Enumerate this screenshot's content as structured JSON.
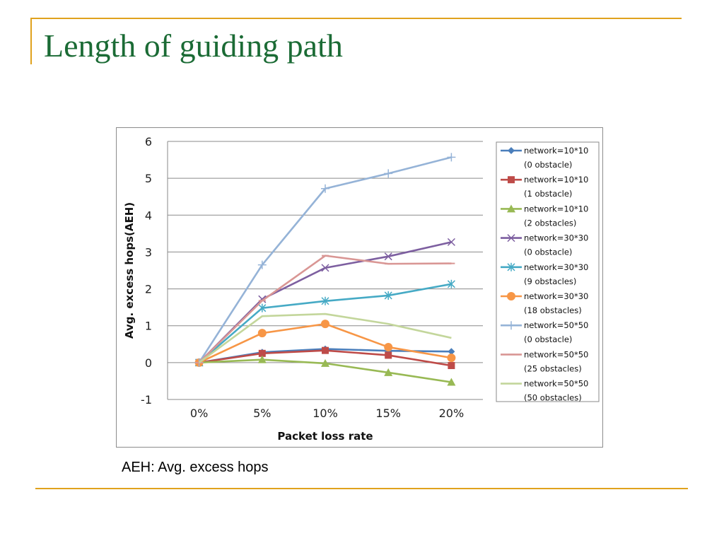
{
  "slide": {
    "title": "Length of guiding path",
    "footnote": "AEH: Avg. excess hops"
  },
  "colors": {
    "accent_rule": "#e0a21d",
    "title": "#1b6b35"
  },
  "chart_data": {
    "type": "line",
    "title": "",
    "xlabel": "Packet loss rate",
    "ylabel": "Avg. excess hops(AEH)",
    "categories": [
      "0%",
      "5%",
      "10%",
      "15%",
      "20%"
    ],
    "ylim": [
      -1,
      6
    ],
    "yticks": [
      "6",
      "5",
      "4",
      "3",
      "2",
      "1",
      "0",
      "-1"
    ],
    "grid": true,
    "legend_position": "right",
    "series": [
      {
        "name_line1": "network=10*10",
        "name_line2": "(0 obstacle)",
        "color": "#4a7ebb",
        "marker": "diamond",
        "values": [
          0,
          0.28,
          0.37,
          0.32,
          0.3
        ]
      },
      {
        "name_line1": "network=10*10",
        "name_line2": "(1 obstacle)",
        "color": "#be4b48",
        "marker": "square",
        "values": [
          0,
          0.25,
          0.33,
          0.2,
          -0.08
        ]
      },
      {
        "name_line1": "network=10*10",
        "name_line2": "(2 obstacles)",
        "color": "#98b954",
        "marker": "triangle",
        "values": [
          0,
          0.08,
          -0.02,
          -0.27,
          -0.53
        ]
      },
      {
        "name_line1": "network=30*30",
        "name_line2": "(0 obstacle)",
        "color": "#7d5fa0",
        "marker": "x",
        "values": [
          0,
          1.72,
          2.57,
          2.88,
          3.27
        ]
      },
      {
        "name_line1": "network=30*30",
        "name_line2": "(9 obstacles)",
        "color": "#46aac5",
        "marker": "star",
        "values": [
          0,
          1.48,
          1.67,
          1.82,
          2.13
        ]
      },
      {
        "name_line1": "network=30*30",
        "name_line2": "(18 obstacles)",
        "color": "#f79646",
        "marker": "circle",
        "values": [
          0,
          0.8,
          1.05,
          0.42,
          0.13
        ]
      },
      {
        "name_line1": "network=50*50",
        "name_line2": "(0 obstacle)",
        "color": "#95b3d7",
        "marker": "plus",
        "values": [
          0,
          2.65,
          4.72,
          5.13,
          5.57
        ]
      },
      {
        "name_line1": "network=50*50",
        "name_line2": "(25 obstacles)",
        "color": "#d99694",
        "marker": "dash",
        "values": [
          0,
          1.68,
          2.9,
          2.68,
          2.69
        ]
      },
      {
        "name_line1": "network=50*50",
        "name_line2": "(50 obstacles)",
        "color": "#c3d69b",
        "marker": "none",
        "values": [
          0,
          1.26,
          1.32,
          1.05,
          0.67
        ]
      }
    ]
  }
}
